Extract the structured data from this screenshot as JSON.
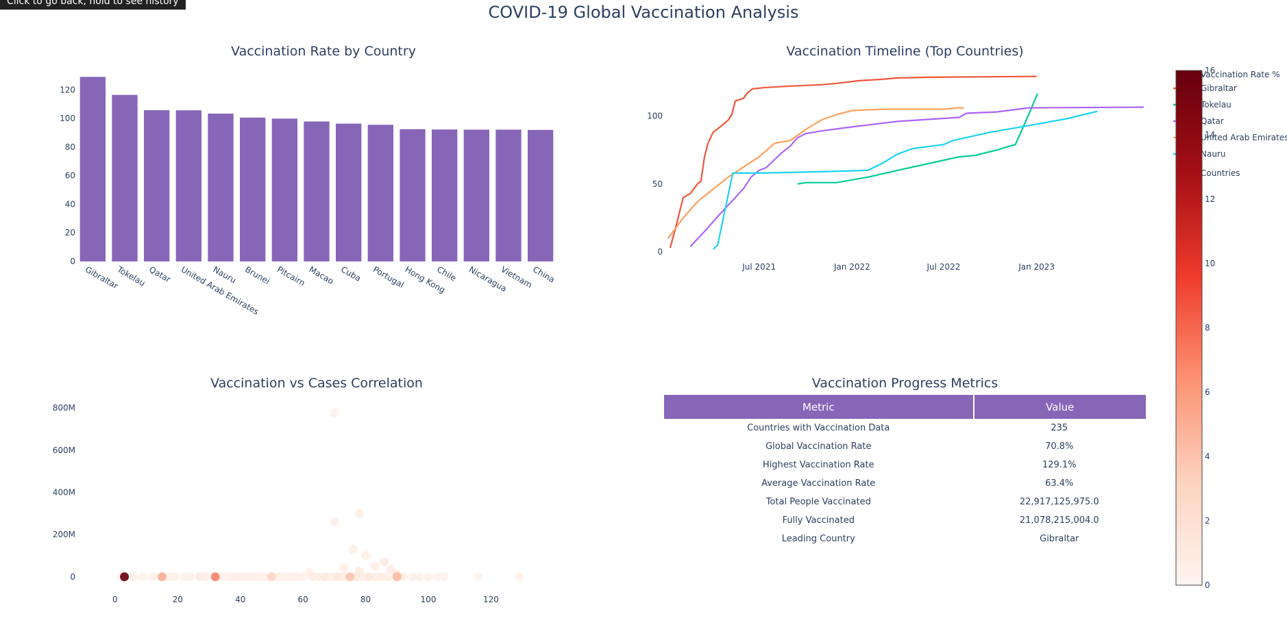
{
  "page": {
    "title": "COVID-19 Global Vaccination Analysis",
    "tooltip": "Click to go back, hold to see history"
  },
  "colors": {
    "bar": "#8766b8",
    "text": "#2a3f5f",
    "header": "#8766b8",
    "colorscale": [
      "#fff5f0",
      "#fdd3c0",
      "#fc9272",
      "#ef3b2c",
      "#a50f15",
      "#67000d"
    ]
  },
  "chart_data": [
    {
      "id": "bar",
      "type": "bar",
      "title": "Vaccination Rate by Country",
      "categories": [
        "Gibraltar",
        "Tokelau",
        "Qatar",
        "United Arab Emirates",
        "Nauru",
        "Brunei",
        "Pitcairn",
        "Macao",
        "Cuba",
        "Portugal",
        "Hong Kong",
        "Chile",
        "Nicaragua",
        "Vietnam",
        "China"
      ],
      "values": [
        129.1,
        116.5,
        105.8,
        105.7,
        103.4,
        100.6,
        99.9,
        97.9,
        96.4,
        95.6,
        92.5,
        92.3,
        92.2,
        92.2,
        92.0
      ],
      "ylim": [
        0,
        135
      ],
      "yticks": [
        0,
        20,
        40,
        60,
        80,
        100,
        120
      ],
      "xlabel": "",
      "ylabel": ""
    },
    {
      "id": "timeline",
      "type": "line",
      "title": "Vaccination Timeline (Top Countries)",
      "xlim": [
        "2020-12-25",
        "2023-08-05"
      ],
      "ylim": [
        -2,
        135
      ],
      "xticks": [
        {
          "date": "2021-07-01",
          "label": "Jul 2021"
        },
        {
          "date": "2022-01-01",
          "label": "Jan 2022"
        },
        {
          "date": "2022-07-01",
          "label": "Jul 2022"
        },
        {
          "date": "2023-01-01",
          "label": "Jan 2023"
        }
      ],
      "yticks": [
        0,
        50,
        100
      ],
      "legend_title": "Countries",
      "series": [
        {
          "name": "Gibraltar",
          "color": "#ef553b",
          "points": [
            [
              "2021-01-06",
              3
            ],
            [
              "2021-01-15",
              15
            ],
            [
              "2021-01-25",
              30
            ],
            [
              "2021-02-01",
              40
            ],
            [
              "2021-02-15",
              43
            ],
            [
              "2021-03-01",
              50
            ],
            [
              "2021-03-08",
              52
            ],
            [
              "2021-03-15",
              70
            ],
            [
              "2021-03-22",
              80
            ],
            [
              "2021-04-01",
              88
            ],
            [
              "2021-04-15",
              92
            ],
            [
              "2021-05-01",
              97
            ],
            [
              "2021-05-08",
              101
            ],
            [
              "2021-05-15",
              111
            ],
            [
              "2021-05-31",
              113
            ],
            [
              "2021-06-08",
              117
            ],
            [
              "2021-06-18",
              120
            ],
            [
              "2021-07-15",
              121
            ],
            [
              "2021-09-01",
              122
            ],
            [
              "2021-11-01",
              123
            ],
            [
              "2021-12-01",
              124
            ],
            [
              "2022-01-15",
              126
            ],
            [
              "2022-03-01",
              127
            ],
            [
              "2022-04-01",
              128
            ],
            [
              "2022-06-01",
              128.5
            ],
            [
              "2022-09-01",
              128.8
            ],
            [
              "2023-01-01",
              129.1
            ]
          ]
        },
        {
          "name": "Tokelau",
          "color": "#00cc96",
          "points": [
            [
              "2021-09-15",
              50
            ],
            [
              "2021-10-01",
              51
            ],
            [
              "2021-12-01",
              51
            ],
            [
              "2022-02-01",
              55
            ],
            [
              "2022-04-01",
              60
            ],
            [
              "2022-06-01",
              65
            ],
            [
              "2022-08-01",
              70
            ],
            [
              "2022-09-01",
              71
            ],
            [
              "2022-10-15",
              75
            ],
            [
              "2022-11-01",
              77
            ],
            [
              "2022-11-20",
              79
            ],
            [
              "2022-12-15",
              100
            ],
            [
              "2023-01-03",
              116.5
            ]
          ]
        },
        {
          "name": "Qatar",
          "color": "#ab63fa",
          "points": [
            [
              "2021-02-15",
              4
            ],
            [
              "2021-03-15",
              15
            ],
            [
              "2021-04-15",
              28
            ],
            [
              "2021-05-15",
              40
            ],
            [
              "2021-06-01",
              47
            ],
            [
              "2021-06-15",
              55
            ],
            [
              "2021-07-01",
              60
            ],
            [
              "2021-07-15",
              62
            ],
            [
              "2021-08-01",
              68
            ],
            [
              "2021-08-15",
              73
            ],
            [
              "2021-09-01",
              78
            ],
            [
              "2021-09-15",
              84
            ],
            [
              "2021-10-01",
              87
            ],
            [
              "2021-11-01",
              89
            ],
            [
              "2022-01-01",
              92
            ],
            [
              "2022-04-01",
              96
            ],
            [
              "2022-08-01",
              99
            ],
            [
              "2022-08-15",
              102
            ],
            [
              "2022-10-15",
              103
            ],
            [
              "2022-12-15",
              106
            ],
            [
              "2023-08-01",
              106.5
            ]
          ]
        },
        {
          "name": "United Arab Emirates",
          "color": "#ffa15a",
          "points": [
            [
              "2021-01-02",
              10
            ],
            [
              "2021-02-01",
              25
            ],
            [
              "2021-03-01",
              37
            ],
            [
              "2021-05-01",
              55
            ],
            [
              "2021-07-01",
              70
            ],
            [
              "2021-08-01",
              80
            ],
            [
              "2021-09-01",
              82
            ],
            [
              "2021-10-01",
              90
            ],
            [
              "2021-11-01",
              97
            ],
            [
              "2021-12-01",
              101
            ],
            [
              "2022-01-01",
              104
            ],
            [
              "2022-03-01",
              105
            ],
            [
              "2022-06-01",
              105
            ],
            [
              "2022-07-01",
              105
            ],
            [
              "2022-07-28",
              106
            ],
            [
              "2022-08-10",
              106
            ]
          ]
        },
        {
          "name": "Nauru",
          "color": "#19d3f3",
          "points": [
            [
              "2021-04-01",
              2
            ],
            [
              "2021-04-10",
              5
            ],
            [
              "2021-05-10",
              58
            ],
            [
              "2021-07-01",
              58
            ],
            [
              "2021-11-01",
              59
            ],
            [
              "2022-02-01",
              60
            ],
            [
              "2022-03-01",
              65
            ],
            [
              "2022-04-01",
              72
            ],
            [
              "2022-05-01",
              76
            ],
            [
              "2022-07-01",
              79
            ],
            [
              "2022-07-20",
              82
            ],
            [
              "2022-10-01",
              88
            ],
            [
              "2023-01-01",
              94
            ],
            [
              "2023-03-01",
              98
            ],
            [
              "2023-05-01",
              103.4
            ]
          ]
        }
      ]
    },
    {
      "id": "scatter",
      "type": "scatter",
      "title": "Vaccination vs Cases Correlation",
      "xlim": [
        -5,
        135
      ],
      "ylim": [
        -30000000,
        820000000
      ],
      "xticks": [
        0,
        20,
        40,
        60,
        80,
        100,
        120
      ],
      "yticks": [
        {
          "value": 0,
          "label": "0"
        },
        {
          "value": 200000000,
          "label": "200M"
        },
        {
          "value": 400000000,
          "label": "400M"
        },
        {
          "value": 600000000,
          "label": "600M"
        },
        {
          "value": 800000000,
          "label": "800M"
        }
      ],
      "colorbar": {
        "title": "Vaccination Rate %",
        "min": 0,
        "max": 16,
        "ticks": [
          0,
          2,
          4,
          6,
          8,
          10,
          12,
          14,
          16
        ]
      },
      "points": [
        [
          70,
          775000000,
          0.3
        ],
        [
          70,
          260000000,
          0.5
        ],
        [
          78,
          300000000,
          0.6
        ],
        [
          76,
          130000000,
          0.8
        ],
        [
          80,
          100000000,
          0.7
        ],
        [
          86,
          70000000,
          1.0
        ],
        [
          73,
          40000000,
          0.6
        ],
        [
          83,
          50000000,
          0.8
        ],
        [
          88,
          35000000,
          0.9
        ],
        [
          62,
          20000000,
          0.5
        ],
        [
          78,
          25000000,
          0.9
        ],
        [
          90,
          10000000,
          1.5
        ],
        [
          3,
          0,
          16
        ],
        [
          15,
          0,
          5
        ],
        [
          32,
          0,
          7
        ],
        [
          50,
          0,
          3
        ],
        [
          75,
          0,
          4
        ],
        [
          90,
          0,
          4.5
        ],
        [
          2,
          0,
          0.4
        ],
        [
          6,
          0,
          0.6
        ],
        [
          9,
          0,
          0.4
        ],
        [
          12,
          0,
          0.5
        ],
        [
          17,
          0,
          0.4
        ],
        [
          19,
          0,
          0.7
        ],
        [
          22,
          0,
          0.4
        ],
        [
          24,
          0,
          0.5
        ],
        [
          27,
          0,
          0.9
        ],
        [
          29,
          0,
          0.6
        ],
        [
          34,
          0,
          0.5
        ],
        [
          36,
          0,
          0.4
        ],
        [
          38,
          0,
          0.8
        ],
        [
          40,
          0,
          0.6
        ],
        [
          42,
          0,
          0.5
        ],
        [
          44,
          0,
          0.4
        ],
        [
          46,
          0,
          0.7
        ],
        [
          48,
          0,
          0.5
        ],
        [
          52,
          0,
          0.6
        ],
        [
          54,
          0,
          0.4
        ],
        [
          56,
          0,
          0.5
        ],
        [
          58,
          0,
          0.7
        ],
        [
          60,
          0,
          0.5
        ],
        [
          63,
          0,
          0.9
        ],
        [
          65,
          0,
          0.6
        ],
        [
          67,
          0,
          1.0
        ],
        [
          69,
          0,
          0.7
        ],
        [
          71,
          0,
          1.2
        ],
        [
          73,
          0,
          0.8
        ],
        [
          77,
          0,
          1.1
        ],
        [
          79,
          0,
          0.7
        ],
        [
          81,
          0,
          1.3
        ],
        [
          83,
          0,
          0.8
        ],
        [
          85,
          0,
          0.9
        ],
        [
          87,
          0,
          0.7
        ],
        [
          92,
          0,
          0.8
        ],
        [
          95,
          0,
          0.5
        ],
        [
          97,
          0,
          0.6
        ],
        [
          100,
          0,
          0.4
        ],
        [
          103,
          0,
          0.5
        ],
        [
          105,
          0,
          0.4
        ],
        [
          116,
          0,
          0.3
        ],
        [
          129,
          0,
          0.4
        ]
      ]
    }
  ],
  "metrics_table": {
    "title": "Vaccination Progress Metrics",
    "headers": [
      "Metric",
      "Value"
    ],
    "rows": [
      [
        "Countries with Vaccination Data",
        "235"
      ],
      [
        "Global Vaccination Rate",
        "70.8%"
      ],
      [
        "Highest Vaccination Rate",
        "129.1%"
      ],
      [
        "Average Vaccination Rate",
        "63.4%"
      ],
      [
        "Total People Vaccinated",
        "22,917,125,975.0"
      ],
      [
        "Fully Vaccinated",
        "21,078,215,004.0"
      ],
      [
        "Leading Country",
        "Gibraltar"
      ]
    ]
  }
}
